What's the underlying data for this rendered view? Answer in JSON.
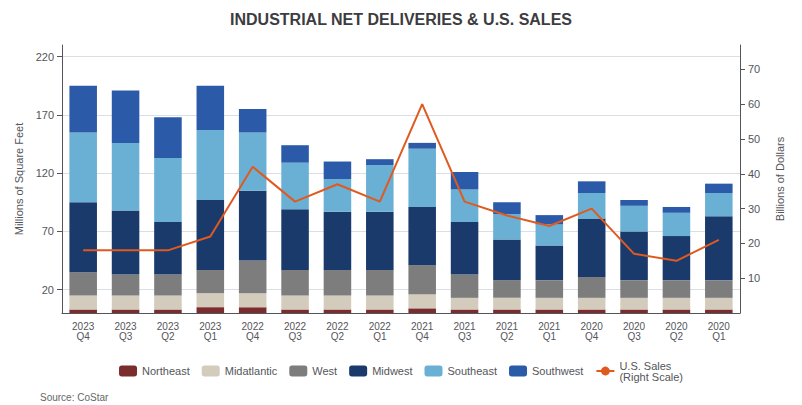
{
  "chart_data": {
    "type": "bar",
    "title": "INDUSTRIAL NET DELIVERIES & U.S. SALES",
    "ylabel": "Millions of Square Feet",
    "y2label": "Billions of Dollars",
    "annotations": [
      "Source: CoStar"
    ],
    "categories": [
      "2023\nQ4",
      "2023\nQ3",
      "2023\nQ2",
      "2023\nQ1",
      "2022\nQ4",
      "2022\nQ3",
      "2022\nQ2",
      "2022\nQ1",
      "2021\nQ4",
      "2021\nQ3",
      "2021\nQ2",
      "2021\nQ1",
      "2020\nQ4",
      "2020\nQ3",
      "2020\nQ2",
      "2020\nQ1"
    ],
    "stacked": true,
    "series": [
      {
        "name": "Northeast",
        "type": "bar",
        "color": "#7b2d2d",
        "values": [
          3,
          3,
          3,
          5,
          5,
          3,
          3,
          3,
          4,
          3,
          3,
          3,
          3,
          3,
          3,
          3
        ]
      },
      {
        "name": "Midatlantic",
        "type": "bar",
        "color": "#d3ccbd",
        "values": [
          12,
          12,
          12,
          12,
          12,
          12,
          12,
          12,
          12,
          10,
          10,
          10,
          10,
          10,
          10,
          10
        ]
      },
      {
        "name": "West",
        "type": "bar",
        "color": "#7d7d7d",
        "values": [
          20,
          18,
          18,
          20,
          28,
          22,
          22,
          22,
          25,
          20,
          15,
          15,
          18,
          15,
          15,
          15
        ]
      },
      {
        "name": "Midwest",
        "type": "bar",
        "color": "#1a3a6b",
        "values": [
          60,
          55,
          45,
          60,
          60,
          52,
          50,
          50,
          50,
          45,
          35,
          30,
          50,
          42,
          38,
          55
        ]
      },
      {
        "name": "Southeast",
        "type": "bar",
        "color": "#6ab0d4",
        "values": [
          60,
          58,
          55,
          60,
          50,
          40,
          28,
          40,
          50,
          28,
          22,
          18,
          22,
          22,
          20,
          20
        ]
      },
      {
        "name": "Southwest",
        "type": "bar",
        "color": "#2b5ba8",
        "values": [
          40,
          45,
          35,
          38,
          20,
          15,
          15,
          5,
          5,
          15,
          10,
          8,
          10,
          5,
          5,
          8
        ]
      },
      {
        "name": "U.S. Sales\n(Right Scale)",
        "type": "line",
        "axis": "y2",
        "color": "#e05a20",
        "values": [
          18,
          18,
          18,
          22,
          42,
          32,
          37,
          32,
          60,
          32,
          28,
          25,
          30,
          17,
          15,
          21
        ]
      }
    ],
    "ylim": [
      0,
      230
    ],
    "yticks": [
      20,
      70,
      120,
      170,
      220
    ],
    "y2lim": [
      0,
      77
    ],
    "y2ticks": [
      10,
      20,
      30,
      40,
      50,
      60,
      70
    ],
    "grid": true,
    "legend": "bottom"
  }
}
